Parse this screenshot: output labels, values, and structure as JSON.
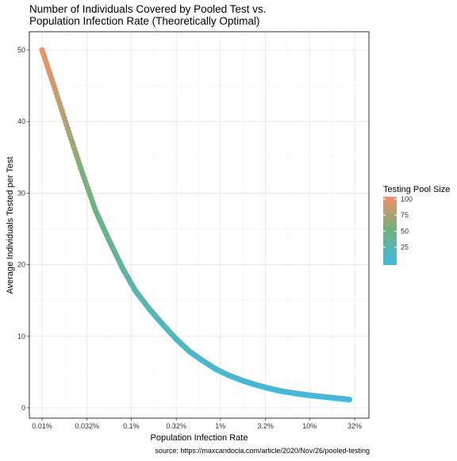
{
  "chart_data": {
    "type": "scatter",
    "title_lines": [
      "Number of Individuals Covered by Pooled Test vs.",
      "Population Infection Rate (Theoretically Optimal)"
    ],
    "xlabel": "Population Infection Rate",
    "ylabel": "Average Individuals Tested per Test",
    "x_scale": "log10",
    "xlim": [
      0.0001,
      0.32
    ],
    "ylim": [
      0,
      50
    ],
    "x_ticks": [
      {
        "value": 0.0001,
        "label": "0.01%"
      },
      {
        "value": 0.00032,
        "label": "0.032%"
      },
      {
        "value": 0.001,
        "label": "0.1%"
      },
      {
        "value": 0.0032,
        "label": "0.32%"
      },
      {
        "value": 0.01,
        "label": "1%"
      },
      {
        "value": 0.032,
        "label": "3.2%"
      },
      {
        "value": 0.1,
        "label": "10%"
      },
      {
        "value": 0.32,
        "label": "32%"
      }
    ],
    "y_ticks": [
      0,
      10,
      20,
      30,
      40,
      50
    ],
    "grid": true,
    "points": [
      {
        "x": 0.0001,
        "y": 50,
        "pool": 100
      },
      {
        "x": 0.00014,
        "y": 44.5,
        "pool": 88
      },
      {
        "x": 0.0002,
        "y": 38.5,
        "pool": 71
      },
      {
        "x": 0.00028,
        "y": 33.0,
        "pool": 58
      },
      {
        "x": 0.0004,
        "y": 27.5,
        "pool": 50
      },
      {
        "x": 0.00056,
        "y": 23.5,
        "pool": 42
      },
      {
        "x": 0.0008,
        "y": 19.5,
        "pool": 36
      },
      {
        "x": 0.00112,
        "y": 16.3,
        "pool": 30
      },
      {
        "x": 0.0016,
        "y": 13.8,
        "pool": 26
      },
      {
        "x": 0.00224,
        "y": 11.7,
        "pool": 22
      },
      {
        "x": 0.0032,
        "y": 9.6,
        "pool": 18
      },
      {
        "x": 0.00447,
        "y": 7.9,
        "pool": 16
      },
      {
        "x": 0.0063,
        "y": 6.6,
        "pool": 13
      },
      {
        "x": 0.00891,
        "y": 5.4,
        "pool": 11
      },
      {
        "x": 0.0126,
        "y": 4.5,
        "pool": 10
      },
      {
        "x": 0.0178,
        "y": 3.8,
        "pool": 8
      },
      {
        "x": 0.0251,
        "y": 3.2,
        "pool": 7
      },
      {
        "x": 0.0355,
        "y": 2.7,
        "pool": 6
      },
      {
        "x": 0.0501,
        "y": 2.3,
        "pool": 5
      },
      {
        "x": 0.0708,
        "y": 2.0,
        "pool": 5
      },
      {
        "x": 0.1,
        "y": 1.75,
        "pool": 4
      },
      {
        "x": 0.141,
        "y": 1.55,
        "pool": 4
      },
      {
        "x": 0.2,
        "y": 1.35,
        "pool": 3
      },
      {
        "x": 0.28,
        "y": 1.15,
        "pool": 3
      }
    ],
    "legend": {
      "title": "Testing Pool Size",
      "breaks": [
        100,
        75,
        50,
        25
      ],
      "range": [
        1,
        100
      ],
      "color_low": "#3fb9e3",
      "color_mid": "#6fb27f",
      "color_high": "#ee9169",
      "placement": "right"
    },
    "caption": "source: https://maxcandocia.com/article/2020/Nov/26/pooled-testing"
  }
}
